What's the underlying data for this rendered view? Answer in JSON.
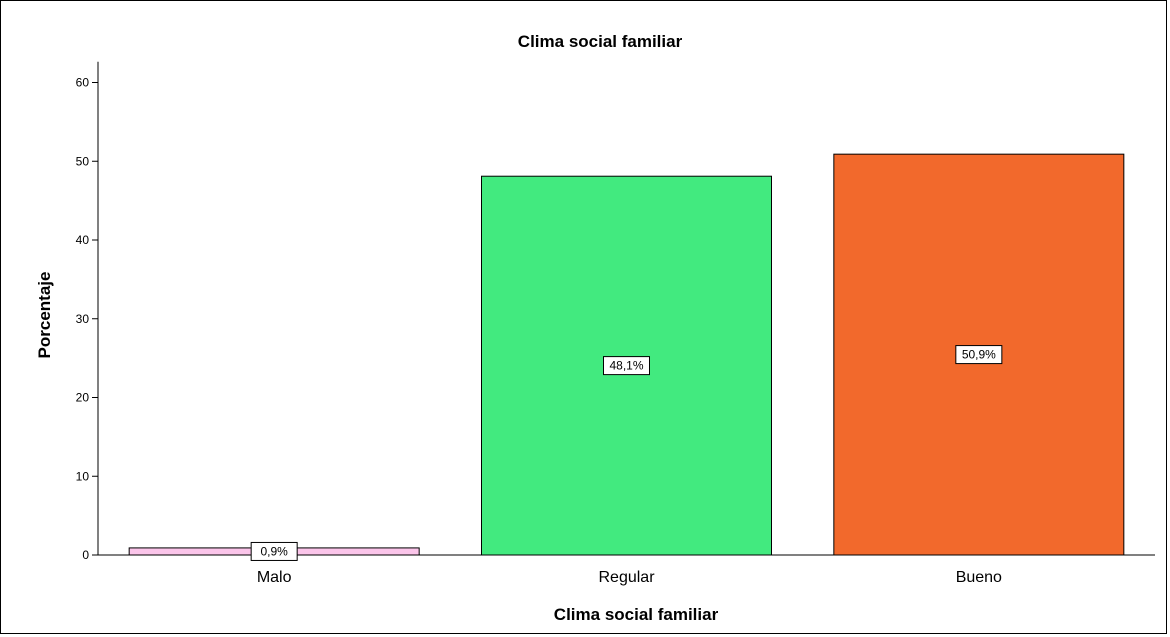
{
  "chart_data": {
    "type": "bar",
    "title": "Clima social familiar",
    "xlabel": "Clima social familiar",
    "ylabel": "Porcentaje",
    "categories": [
      "Malo",
      "Regular",
      "Bueno"
    ],
    "values": [
      0.9,
      48.1,
      50.9
    ],
    "data_labels": [
      "0,9%",
      "48,1%",
      "50,9%"
    ],
    "colors": [
      "#fbc5ea",
      "#42ea7f",
      "#f2692c"
    ],
    "ylim": [
      0,
      62
    ],
    "yticks": [
      0,
      10,
      20,
      30,
      40,
      50,
      60
    ],
    "ytick_labels": [
      "0",
      "10",
      "20",
      "30",
      "40",
      "50",
      "60"
    ],
    "grid": false,
    "legend": "none"
  }
}
